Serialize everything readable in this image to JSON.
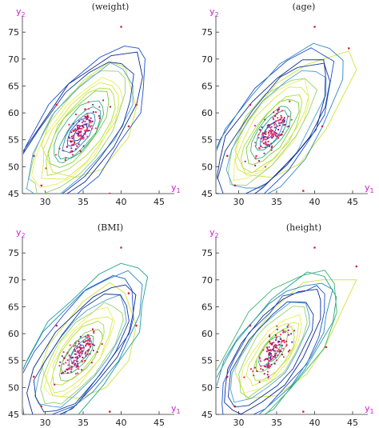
{
  "chart_data": [
    {
      "type": "scatter",
      "title": "(weight)",
      "xlabel": "y",
      "xlabel_sub": "1",
      "ylabel": "y",
      "ylabel_sub": "2",
      "xlim": [
        27,
        47
      ],
      "ylim": [
        45,
        78
      ],
      "xticks": [
        30,
        35,
        40,
        45
      ],
      "yticks": [
        45,
        50,
        55,
        60,
        65,
        70,
        75
      ],
      "grid": false,
      "outliers": [
        [
          40,
          76
        ],
        [
          29.5,
          46.5
        ],
        [
          31.5,
          61.5
        ],
        [
          28.5,
          52
        ],
        [
          42,
          61.5
        ],
        [
          38.5,
          45
        ],
        [
          41,
          57.5
        ]
      ],
      "hull": [
        [
          29.5,
          54
        ],
        [
          31,
          49
        ],
        [
          34,
          48
        ],
        [
          37.5,
          49.5
        ],
        [
          41,
          55.5
        ],
        [
          42,
          61
        ],
        [
          40.5,
          68.5
        ],
        [
          38.5,
          69.5
        ],
        [
          35,
          66
        ],
        [
          30.5,
          58
        ]
      ]
    },
    {
      "type": "scatter",
      "title": "(age)",
      "xlabel": "y",
      "xlabel_sub": "1",
      "ylabel": "y",
      "ylabel_sub": "2",
      "xlim": [
        27,
        47
      ],
      "ylim": [
        45,
        78
      ],
      "xticks": [
        30,
        35,
        40,
        45
      ],
      "yticks": [
        45,
        50,
        55,
        60,
        65,
        70,
        75
      ],
      "grid": false,
      "outliers": [
        [
          40,
          76
        ],
        [
          29.5,
          46.5
        ],
        [
          31.5,
          61.5
        ],
        [
          28.5,
          52
        ],
        [
          44.5,
          72
        ],
        [
          41,
          57.5
        ],
        [
          38.5,
          45.5
        ]
      ],
      "hull": [
        [
          29.5,
          53
        ],
        [
          31,
          48.5
        ],
        [
          34.5,
          48
        ],
        [
          38,
          50.5
        ],
        [
          41.5,
          57
        ],
        [
          45.5,
          68
        ],
        [
          44.5,
          71.5
        ],
        [
          39,
          69
        ],
        [
          35,
          65.5
        ],
        [
          30.5,
          57.5
        ]
      ]
    },
    {
      "type": "scatter",
      "title": "(BMI)",
      "xlabel": "y",
      "xlabel_sub": "1",
      "ylabel": "y",
      "ylabel_sub": "2",
      "xlim": [
        27,
        47
      ],
      "ylim": [
        45,
        78
      ],
      "xticks": [
        30,
        35,
        40,
        45
      ],
      "yticks": [
        45,
        50,
        55,
        60,
        65,
        70,
        75
      ],
      "grid": false,
      "outliers": [
        [
          40,
          76
        ],
        [
          29.5,
          46.5
        ],
        [
          31.5,
          61.5
        ],
        [
          28.5,
          52
        ],
        [
          42,
          61.5
        ],
        [
          41,
          67.5
        ],
        [
          38.5,
          45.5
        ]
      ],
      "hull": [
        [
          29.5,
          54
        ],
        [
          31,
          48.5
        ],
        [
          34.5,
          48
        ],
        [
          38,
          50
        ],
        [
          41,
          55
        ],
        [
          42,
          61.5
        ],
        [
          40.5,
          67.5
        ],
        [
          38.5,
          69.5
        ],
        [
          35,
          66
        ],
        [
          30.5,
          58
        ]
      ]
    },
    {
      "type": "scatter",
      "title": "(height)",
      "xlabel": "y",
      "xlabel_sub": "1",
      "ylabel": "y",
      "ylabel_sub": "2",
      "xlim": [
        27,
        47
      ],
      "ylim": [
        45,
        78
      ],
      "xticks": [
        30,
        35,
        40,
        45
      ],
      "yticks": [
        45,
        50,
        55,
        60,
        65,
        70,
        75
      ],
      "grid": false,
      "outliers": [
        [
          40,
          76
        ],
        [
          29.5,
          46.5
        ],
        [
          31.5,
          61.5
        ],
        [
          28.5,
          52
        ],
        [
          45.5,
          72.5
        ],
        [
          41.5,
          57.5
        ],
        [
          38.5,
          45.5
        ]
      ],
      "hull": [
        [
          29.5,
          53
        ],
        [
          31,
          48
        ],
        [
          35,
          48.5
        ],
        [
          39,
          52.5
        ],
        [
          41.5,
          58
        ],
        [
          45.5,
          70
        ],
        [
          41,
          70
        ],
        [
          38.5,
          69.5
        ],
        [
          34.5,
          64.5
        ],
        [
          30.5,
          57
        ]
      ]
    }
  ]
}
